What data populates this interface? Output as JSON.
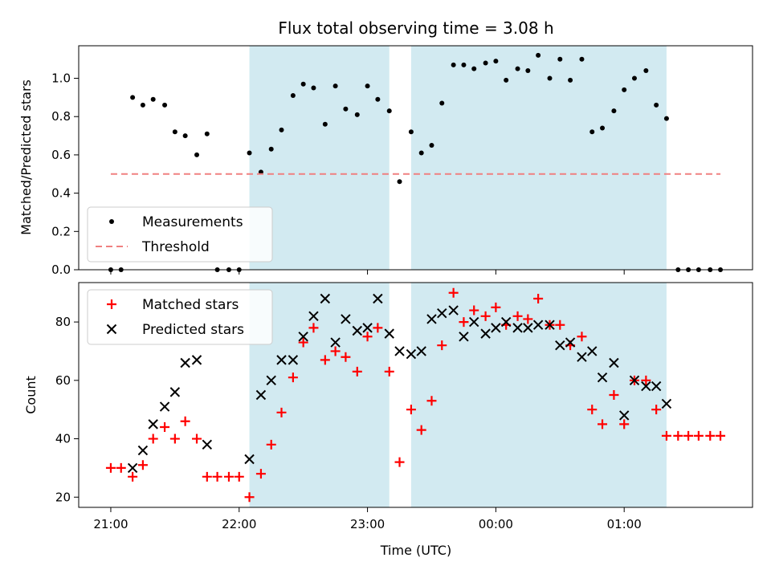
{
  "chart_data": [
    {
      "type": "scatter",
      "title": "Flux total observing time = 3.08 h",
      "ylabel": "Matched/Predicted stars",
      "xlabel": "",
      "ylim": [
        0,
        1.17
      ],
      "yticks": [
        0.0,
        0.2,
        0.4,
        0.6,
        0.8,
        1.0
      ],
      "ytick_labels": [
        "0.0",
        "0.2",
        "0.4",
        "0.6",
        "0.8",
        "1.0"
      ],
      "legend_location": "lower-left",
      "shaded_intervals": [
        [
          1.08,
          2.17
        ],
        [
          2.34,
          4.33
        ]
      ],
      "shade_color": "#add8e6",
      "series": [
        {
          "name": "Measurements",
          "marker": "dot",
          "color": "#000000",
          "points": [
            [
              0.0,
              0.0
            ],
            [
              0.08,
              0.0
            ],
            [
              0.17,
              0.9
            ],
            [
              0.25,
              0.86
            ],
            [
              0.33,
              0.89
            ],
            [
              0.42,
              0.86
            ],
            [
              0.5,
              0.72
            ],
            [
              0.58,
              0.7
            ],
            [
              0.67,
              0.6
            ],
            [
              0.75,
              0.71
            ],
            [
              0.83,
              0.0
            ],
            [
              0.92,
              0.0
            ],
            [
              1.0,
              0.0
            ],
            [
              1.08,
              0.61
            ],
            [
              1.17,
              0.51
            ],
            [
              1.25,
              0.63
            ],
            [
              1.33,
              0.73
            ],
            [
              1.42,
              0.91
            ],
            [
              1.5,
              0.97
            ],
            [
              1.58,
              0.95
            ],
            [
              1.67,
              0.76
            ],
            [
              1.75,
              0.96
            ],
            [
              1.83,
              0.84
            ],
            [
              1.92,
              0.81
            ],
            [
              2.0,
              0.96
            ],
            [
              2.08,
              0.89
            ],
            [
              2.17,
              0.83
            ],
            [
              2.25,
              0.46
            ],
            [
              2.34,
              0.72
            ],
            [
              2.42,
              0.61
            ],
            [
              2.5,
              0.65
            ],
            [
              2.58,
              0.87
            ],
            [
              2.67,
              1.07
            ],
            [
              2.75,
              1.07
            ],
            [
              2.83,
              1.05
            ],
            [
              2.92,
              1.08
            ],
            [
              3.0,
              1.09
            ],
            [
              3.08,
              0.99
            ],
            [
              3.17,
              1.05
            ],
            [
              3.25,
              1.04
            ],
            [
              3.33,
              1.12
            ],
            [
              3.42,
              1.0
            ],
            [
              3.5,
              1.1
            ],
            [
              3.58,
              0.99
            ],
            [
              3.67,
              1.1
            ],
            [
              3.75,
              0.72
            ],
            [
              3.83,
              0.74
            ],
            [
              3.92,
              0.83
            ],
            [
              4.0,
              0.94
            ],
            [
              4.08,
              1.0
            ],
            [
              4.17,
              1.04
            ],
            [
              4.25,
              0.86
            ],
            [
              4.33,
              0.79
            ],
            [
              4.42,
              0.0
            ],
            [
              4.5,
              0.0
            ],
            [
              4.58,
              0.0
            ],
            [
              4.67,
              0.0
            ],
            [
              4.75,
              0.0
            ]
          ]
        },
        {
          "name": "Threshold",
          "marker": "dashed-line",
          "color": "#f08080",
          "points": [
            [
              0.0,
              0.5
            ],
            [
              4.75,
              0.5
            ]
          ]
        }
      ]
    },
    {
      "type": "scatter",
      "title": "",
      "ylabel": "Count",
      "xlabel": "Time (UTC)",
      "ylim": [
        16.5,
        93.5
      ],
      "yticks": [
        20,
        40,
        60,
        80
      ],
      "ytick_labels": [
        "20",
        "40",
        "60",
        "80"
      ],
      "xticks": [
        0,
        1,
        2,
        3,
        4
      ],
      "xtick_labels": [
        "21:00",
        "22:00",
        "23:00",
        "00:00",
        "01:00"
      ],
      "legend_location": "top-left",
      "shaded_intervals": [
        [
          1.08,
          2.17
        ],
        [
          2.34,
          4.33
        ]
      ],
      "shade_color": "#add8e6",
      "series": [
        {
          "name": "Matched stars",
          "marker": "plus",
          "color": "#ff0000",
          "points": [
            [
              0.0,
              30
            ],
            [
              0.08,
              30
            ],
            [
              0.17,
              27
            ],
            [
              0.25,
              31
            ],
            [
              0.33,
              40
            ],
            [
              0.42,
              44
            ],
            [
              0.5,
              40
            ],
            [
              0.58,
              46
            ],
            [
              0.67,
              40
            ],
            [
              0.75,
              27
            ],
            [
              0.83,
              27
            ],
            [
              0.92,
              27
            ],
            [
              1.0,
              27
            ],
            [
              1.08,
              20
            ],
            [
              1.17,
              28
            ],
            [
              1.25,
              38
            ],
            [
              1.33,
              49
            ],
            [
              1.42,
              61
            ],
            [
              1.5,
              73
            ],
            [
              1.58,
              78
            ],
            [
              1.67,
              67
            ],
            [
              1.75,
              70
            ],
            [
              1.83,
              68
            ],
            [
              1.92,
              63
            ],
            [
              2.0,
              75
            ],
            [
              2.08,
              78
            ],
            [
              2.17,
              63
            ],
            [
              2.25,
              32
            ],
            [
              2.34,
              50
            ],
            [
              2.42,
              43
            ],
            [
              2.5,
              53
            ],
            [
              2.58,
              72
            ],
            [
              2.67,
              90
            ],
            [
              2.75,
              80
            ],
            [
              2.83,
              84
            ],
            [
              2.92,
              82
            ],
            [
              3.0,
              85
            ],
            [
              3.08,
              79
            ],
            [
              3.17,
              82
            ],
            [
              3.25,
              81
            ],
            [
              3.33,
              88
            ],
            [
              3.42,
              79
            ],
            [
              3.5,
              79
            ],
            [
              3.58,
              72
            ],
            [
              3.67,
              75
            ],
            [
              3.75,
              50
            ],
            [
              3.83,
              45
            ],
            [
              3.92,
              55
            ],
            [
              4.0,
              45
            ],
            [
              4.08,
              60
            ],
            [
              4.17,
              60
            ],
            [
              4.25,
              50
            ],
            [
              4.33,
              41
            ],
            [
              4.42,
              41
            ],
            [
              4.5,
              41
            ],
            [
              4.58,
              41
            ],
            [
              4.67,
              41
            ],
            [
              4.75,
              41
            ]
          ]
        },
        {
          "name": "Predicted stars",
          "marker": "x",
          "color": "#000000",
          "points": [
            [
              0.17,
              30
            ],
            [
              0.25,
              36
            ],
            [
              0.33,
              45
            ],
            [
              0.42,
              51
            ],
            [
              0.5,
              56
            ],
            [
              0.58,
              66
            ],
            [
              0.67,
              67
            ],
            [
              0.75,
              38
            ],
            [
              1.08,
              33
            ],
            [
              1.17,
              55
            ],
            [
              1.25,
              60
            ],
            [
              1.33,
              67
            ],
            [
              1.42,
              67
            ],
            [
              1.5,
              75
            ],
            [
              1.58,
              82
            ],
            [
              1.67,
              88
            ],
            [
              1.75,
              73
            ],
            [
              1.83,
              81
            ],
            [
              1.92,
              77
            ],
            [
              2.0,
              78
            ],
            [
              2.08,
              88
            ],
            [
              2.17,
              76
            ],
            [
              2.25,
              70
            ],
            [
              2.34,
              69
            ],
            [
              2.42,
              70
            ],
            [
              2.5,
              81
            ],
            [
              2.58,
              83
            ],
            [
              2.67,
              84
            ],
            [
              2.75,
              75
            ],
            [
              2.83,
              80
            ],
            [
              2.92,
              76
            ],
            [
              3.0,
              78
            ],
            [
              3.08,
              80
            ],
            [
              3.17,
              78
            ],
            [
              3.25,
              78
            ],
            [
              3.33,
              79
            ],
            [
              3.42,
              79
            ],
            [
              3.5,
              72
            ],
            [
              3.58,
              73
            ],
            [
              3.67,
              68
            ],
            [
              3.75,
              70
            ],
            [
              3.83,
              61
            ],
            [
              3.92,
              66
            ],
            [
              4.0,
              48
            ],
            [
              4.08,
              60
            ],
            [
              4.17,
              58
            ],
            [
              4.25,
              58
            ],
            [
              4.33,
              52
            ]
          ]
        }
      ]
    }
  ]
}
